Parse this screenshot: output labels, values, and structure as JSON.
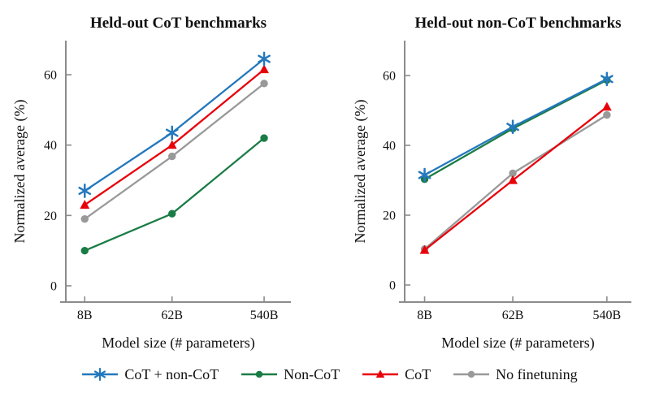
{
  "figure": {
    "ylabel": "Normalized average (%)",
    "xlabel": "Model size (# parameters)"
  },
  "chart_data": [
    {
      "type": "line",
      "title": "Held-out CoT benchmarks",
      "xlabel": "Model size (# parameters)",
      "ylabel": "Normalized average (%)",
      "x_scale": "log",
      "categories": [
        "8B",
        "62B",
        "540B"
      ],
      "yticks": [
        0,
        20,
        40,
        60
      ],
      "ylim": [
        -4.5,
        70
      ],
      "grid": false,
      "series": [
        {
          "name": "No finetuning",
          "color": "#999999",
          "marker": "circle",
          "values": [
            19.0,
            36.8,
            57.5
          ]
        },
        {
          "name": "Non-CoT",
          "color": "#1a7c45",
          "marker": "circle",
          "values": [
            10.0,
            20.5,
            42.0
          ]
        },
        {
          "name": "CoT",
          "color": "#e8000b",
          "marker": "triangle",
          "values": [
            23.0,
            40.0,
            61.5
          ]
        },
        {
          "name": "CoT + non-CoT",
          "color": "#2478bd",
          "marker": "star",
          "values": [
            27.0,
            43.5,
            64.5
          ]
        }
      ]
    },
    {
      "type": "line",
      "title": "Held-out non-CoT benchmarks",
      "xlabel": "Model size (# parameters)",
      "ylabel": "Normalized average (%)",
      "x_scale": "log",
      "categories": [
        "8B",
        "62B",
        "540B"
      ],
      "yticks": [
        0,
        20,
        40,
        60
      ],
      "ylim": [
        -4.5,
        70
      ],
      "grid": false,
      "series": [
        {
          "name": "No finetuning",
          "color": "#999999",
          "marker": "circle",
          "values": [
            10.3,
            32.0,
            48.7
          ]
        },
        {
          "name": "Non-CoT",
          "color": "#1a7c45",
          "marker": "circle",
          "values": [
            30.3,
            44.8,
            58.7
          ]
        },
        {
          "name": "CoT",
          "color": "#e8000b",
          "marker": "triangle",
          "values": [
            10.0,
            30.0,
            51.0
          ]
        },
        {
          "name": "CoT + non-CoT",
          "color": "#2478bd",
          "marker": "star",
          "values": [
            31.5,
            45.3,
            59.0
          ]
        }
      ]
    }
  ],
  "legend": {
    "items": [
      {
        "label": "CoT + non-CoT",
        "color": "#2478bd",
        "marker": "star"
      },
      {
        "label": "Non-CoT",
        "color": "#1a7c45",
        "marker": "circle"
      },
      {
        "label": "CoT",
        "color": "#e8000b",
        "marker": "triangle"
      },
      {
        "label": "No finetuning",
        "color": "#999999",
        "marker": "circle"
      }
    ]
  }
}
